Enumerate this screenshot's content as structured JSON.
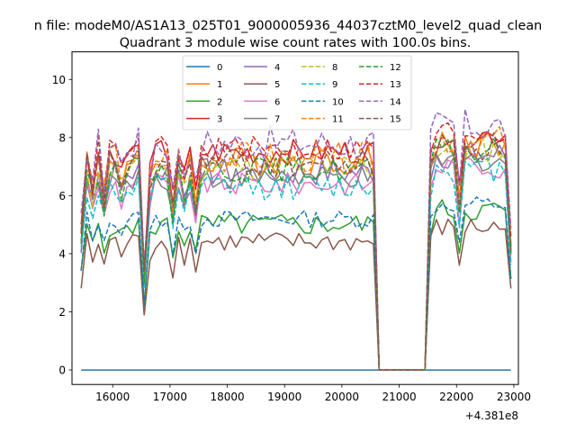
{
  "chart_data": {
    "type": "line",
    "suptitle": "n file: modeM0/AS1A13_025T01_9000005936_44037cztM0_level2_quad_clean",
    "title": "Quadrant 3 module wise count rates with 100.0s bins.",
    "xlabel": "",
    "ylabel": "",
    "x_offset_label": "+4.381e8",
    "xlim": [
      15290,
      23080
    ],
    "ylim": [
      -0.5,
      10.95
    ],
    "x_ticks": [
      16000,
      17000,
      18000,
      19000,
      20000,
      21000,
      22000,
      23000
    ],
    "x_tick_labels": [
      "16000",
      "17000",
      "18000",
      "19000",
      "20000",
      "21000",
      "22000",
      "23000"
    ],
    "y_ticks": [
      0,
      2,
      4,
      6,
      8,
      10
    ],
    "y_tick_labels": [
      "0",
      "2",
      "4",
      "6",
      "8",
      "10"
    ],
    "legend_position": "upper center",
    "legend_columns": 4,
    "x_start": 15450,
    "step": 100,
    "n_points": 76,
    "gap_start": 20550,
    "gap_end": 21550,
    "series": [
      {
        "name": "0",
        "color": "#1f77b4",
        "dash": "solid",
        "kind": "zero"
      },
      {
        "name": "1",
        "color": "#ff7f0e",
        "dash": "solid",
        "kind": "mid",
        "level": 7.2,
        "amp": 0.5
      },
      {
        "name": "2",
        "color": "#2ca02c",
        "dash": "solid",
        "kind": "low",
        "level": 5.0,
        "amp": 0.4
      },
      {
        "name": "3",
        "color": "#d62728",
        "dash": "solid",
        "kind": "mid",
        "level": 7.5,
        "amp": 0.45
      },
      {
        "name": "4",
        "color": "#9467bd",
        "dash": "solid",
        "kind": "mid",
        "level": 6.8,
        "amp": 0.5
      },
      {
        "name": "5",
        "color": "#8c564b",
        "dash": "solid",
        "kind": "low",
        "level": 4.4,
        "amp": 0.35
      },
      {
        "name": "6",
        "color": "#e377c2",
        "dash": "solid",
        "kind": "mid",
        "level": 6.4,
        "amp": 0.4
      },
      {
        "name": "7",
        "color": "#7f7f7f",
        "dash": "solid",
        "kind": "mid",
        "level": 6.6,
        "amp": 0.4
      },
      {
        "name": "8",
        "color": "#bcbd22",
        "dash": "dashed",
        "kind": "mid",
        "level": 7.0,
        "amp": 0.5
      },
      {
        "name": "9",
        "color": "#17becf",
        "dash": "dashed",
        "kind": "mid",
        "level": 6.3,
        "amp": 0.45
      },
      {
        "name": "10",
        "color": "#1f77b4",
        "dash": "dashed",
        "kind": "low",
        "level": 5.2,
        "amp": 0.3
      },
      {
        "name": "11",
        "color": "#ff7f0e",
        "dash": "dashed",
        "kind": "mid",
        "level": 7.3,
        "amp": 0.55
      },
      {
        "name": "12",
        "color": "#2ca02c",
        "dash": "dashed",
        "kind": "mid",
        "level": 6.9,
        "amp": 0.45
      },
      {
        "name": "13",
        "color": "#d62728",
        "dash": "dashed",
        "kind": "mid",
        "level": 7.6,
        "amp": 0.45
      },
      {
        "name": "14",
        "color": "#9467bd",
        "dash": "dashed",
        "kind": "mid",
        "level": 7.8,
        "amp": 0.6
      },
      {
        "name": "15",
        "color": "#8c564b",
        "dash": "dashed",
        "kind": "mid",
        "level": 7.1,
        "amp": 0.5
      }
    ]
  }
}
